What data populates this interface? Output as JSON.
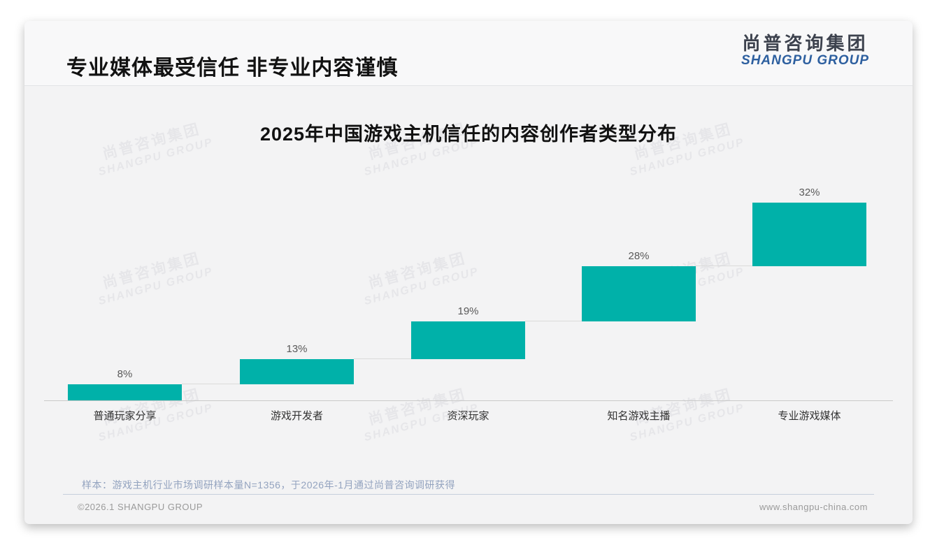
{
  "page": {
    "title": "专业媒体最受信任 非专业内容谨慎",
    "logo": {
      "cn": "尚普咨询集团",
      "en": "SHANGPU GROUP"
    },
    "watermark": {
      "cn": "尚普咨询集团",
      "en": "SHANGPU GROUP"
    },
    "footnote": "样本：游戏主机行业市场调研样本量N=1356，于2026年-1月通过尚普咨询调研获得",
    "footer_left": "©2026.1 SHANGPU GROUP",
    "footer_right": "www.shangpu-china.com"
  },
  "colors": {
    "bar": "#00b1a9",
    "logo_blue": "#2d5f9f",
    "logo_dark": "#3d424e",
    "footnote_text": "#93a3bf",
    "value_label": "#595959",
    "category_label": "#333333"
  },
  "chart_data": {
    "type": "bar",
    "variant": "waterfall-steps",
    "title": "2025年中国游戏主机信任的内容创作者类型分布",
    "categories": [
      "普通玩家分享",
      "游戏开发者",
      "资深玩家",
      "知名游戏主播",
      "专业游戏媒体"
    ],
    "values": [
      8,
      13,
      19,
      28,
      32
    ],
    "labels": [
      "8%",
      "13%",
      "19%",
      "28%",
      "32%"
    ],
    "unit": "%",
    "ylim": [
      0,
      100
    ],
    "grid": false,
    "legend": "none",
    "bar_color": "#00b1a9"
  }
}
